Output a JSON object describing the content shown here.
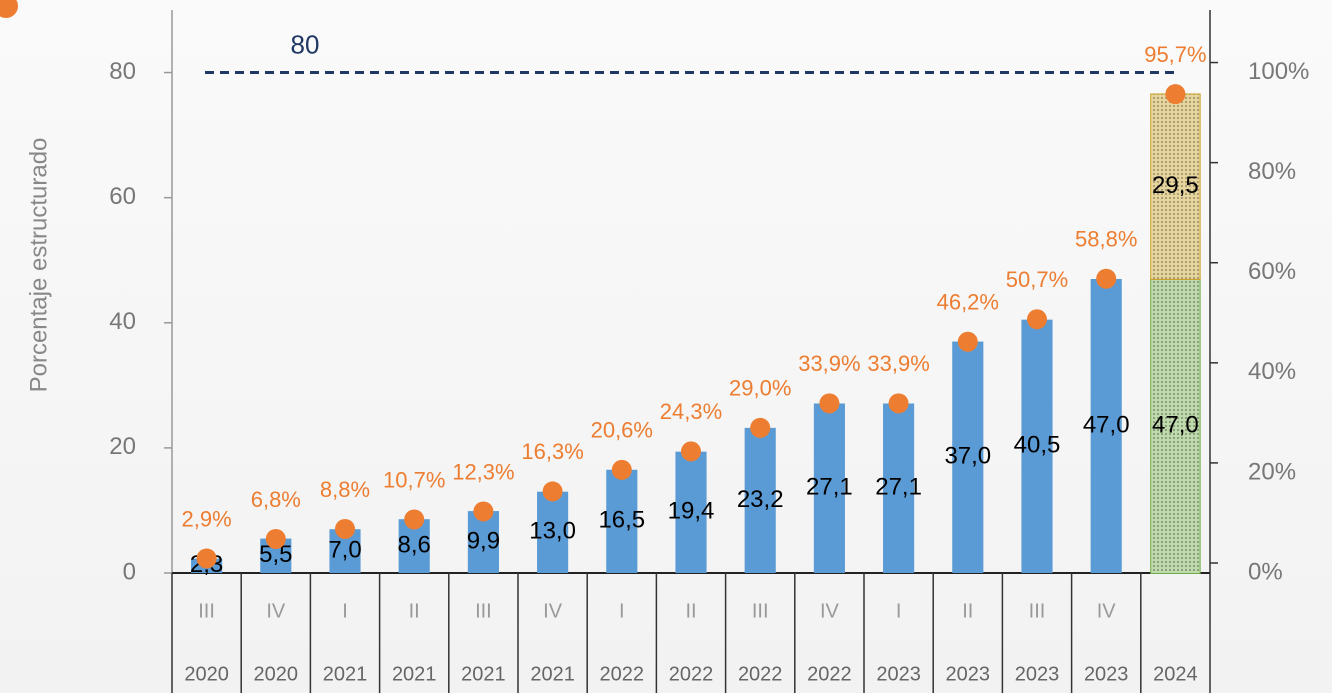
{
  "chart_data": {
    "type": "bar",
    "y_label": "Porcentaje estructurado",
    "categories": [
      "III",
      "IV",
      "I",
      "II",
      "III",
      "IV",
      "I",
      "II",
      "III",
      "IV",
      "I",
      "II",
      "III",
      "IV",
      null
    ],
    "years": [
      "2020",
      "2020",
      "2021",
      "2021",
      "2021",
      "2021",
      "2022",
      "2022",
      "2022",
      "2022",
      "2023",
      "2023",
      "2023",
      "2023",
      "2024"
    ],
    "series": [
      {
        "type": "bar",
        "color": "#5b9bd5",
        "values": [
          2.3,
          5.5,
          7.0,
          8.6,
          9.9,
          13.0,
          16.5,
          19.4,
          23.2,
          27.1,
          27.1,
          37.0,
          40.5,
          47.0,
          null
        ],
        "value_labels": [
          "2,3",
          "5,5",
          "7,0",
          "8,6",
          "9,9",
          "13,0",
          "16,5",
          "19,4",
          "23,2",
          "27,1",
          "27,1",
          "37,0",
          "40,5",
          "47,0",
          null
        ]
      },
      {
        "type": "bar",
        "color": "#70ad47",
        "hatch": true,
        "values": [
          null,
          null,
          null,
          null,
          null,
          null,
          null,
          null,
          null,
          null,
          null,
          null,
          null,
          null,
          47.0
        ],
        "value_labels": [
          null,
          null,
          null,
          null,
          null,
          null,
          null,
          null,
          null,
          null,
          null,
          null,
          null,
          null,
          "47,0"
        ]
      },
      {
        "type": "bar",
        "color": "#c9a227",
        "hatch": true,
        "values": [
          null,
          null,
          null,
          null,
          null,
          null,
          null,
          null,
          null,
          null,
          null,
          null,
          null,
          null,
          29.5
        ],
        "value_labels": [
          null,
          null,
          null,
          null,
          null,
          null,
          null,
          null,
          null,
          null,
          null,
          null,
          null,
          null,
          "29,5"
        ]
      },
      {
        "type": "scatter",
        "color": "#ed7d31",
        "axis": "y2",
        "values": [
          2.9,
          6.8,
          8.8,
          10.7,
          12.3,
          16.3,
          20.6,
          24.3,
          29.0,
          33.9,
          33.9,
          46.2,
          50.7,
          58.8,
          95.7
        ],
        "value_labels": [
          "2,9%",
          "6,8%",
          "8,8%",
          "10,7%",
          "12,3%",
          "16,3%",
          "20,6%",
          "24,3%",
          "29,0%",
          "33,9%",
          "33,9%",
          "46,2%",
          "50,7%",
          "58,8%",
          "95,7%"
        ]
      }
    ],
    "reference_line": 80,
    "reference_color": "#1f3864",
    "ylim": [
      0,
      90
    ],
    "yticks": [
      0,
      20,
      40,
      60,
      80
    ],
    "y2lim": [
      0,
      112.5
    ],
    "y2ticks": [
      {
        "value": 0,
        "label": "0%"
      },
      {
        "value": 20,
        "label": "20%"
      },
      {
        "value": 40,
        "label": "40%"
      },
      {
        "value": 60,
        "label": "60%"
      },
      {
        "value": 80,
        "label": "80%"
      },
      {
        "value": 100,
        "label": "100%"
      }
    ]
  }
}
